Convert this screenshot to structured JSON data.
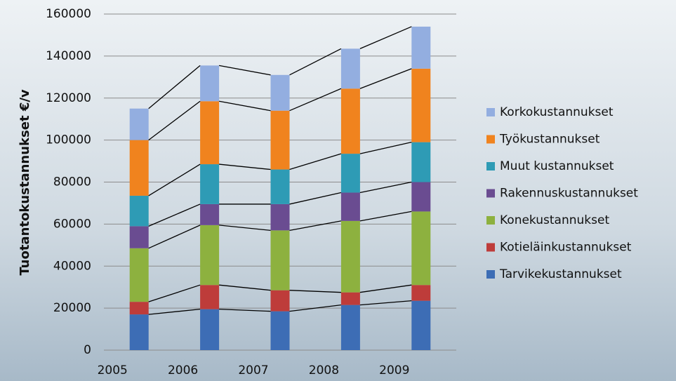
{
  "chart_data": {
    "type": "stacked_bar",
    "y_label": "Tuotantokustannukset €/v",
    "categories": [
      "2005",
      "2006",
      "2007",
      "2008",
      "2009"
    ],
    "series": [
      {
        "name": "Tarvikekustannukset",
        "color": "#3d6db5",
        "values": [
          17000,
          19500,
          18500,
          21500,
          23500
        ]
      },
      {
        "name": "Kotieläinkustannukset",
        "color": "#be3c3a",
        "values": [
          6000,
          11500,
          10000,
          6000,
          7500
        ]
      },
      {
        "name": "Konekustannukset",
        "color": "#8db13f",
        "values": [
          25500,
          28500,
          28500,
          34000,
          35000
        ]
      },
      {
        "name": "Rakennuskustannukset",
        "color": "#6a4c91",
        "values": [
          10500,
          10000,
          12500,
          13500,
          14000
        ]
      },
      {
        "name": "Muut kustannukset",
        "color": "#2e9bb5",
        "values": [
          14500,
          19000,
          16500,
          18500,
          19000
        ]
      },
      {
        "name": "Työkustannukset",
        "color": "#f0831e",
        "values": [
          26500,
          30000,
          28000,
          31000,
          35000
        ]
      },
      {
        "name": "Korkokustannukset",
        "color": "#93aee0",
        "values": [
          15000,
          17000,
          17000,
          19000,
          20000
        ]
      }
    ],
    "ylim": [
      0,
      160000
    ],
    "yticks": [
      0,
      20000,
      40000,
      60000,
      80000,
      100000,
      120000,
      140000,
      160000
    ],
    "grid": true,
    "legend": "right"
  }
}
